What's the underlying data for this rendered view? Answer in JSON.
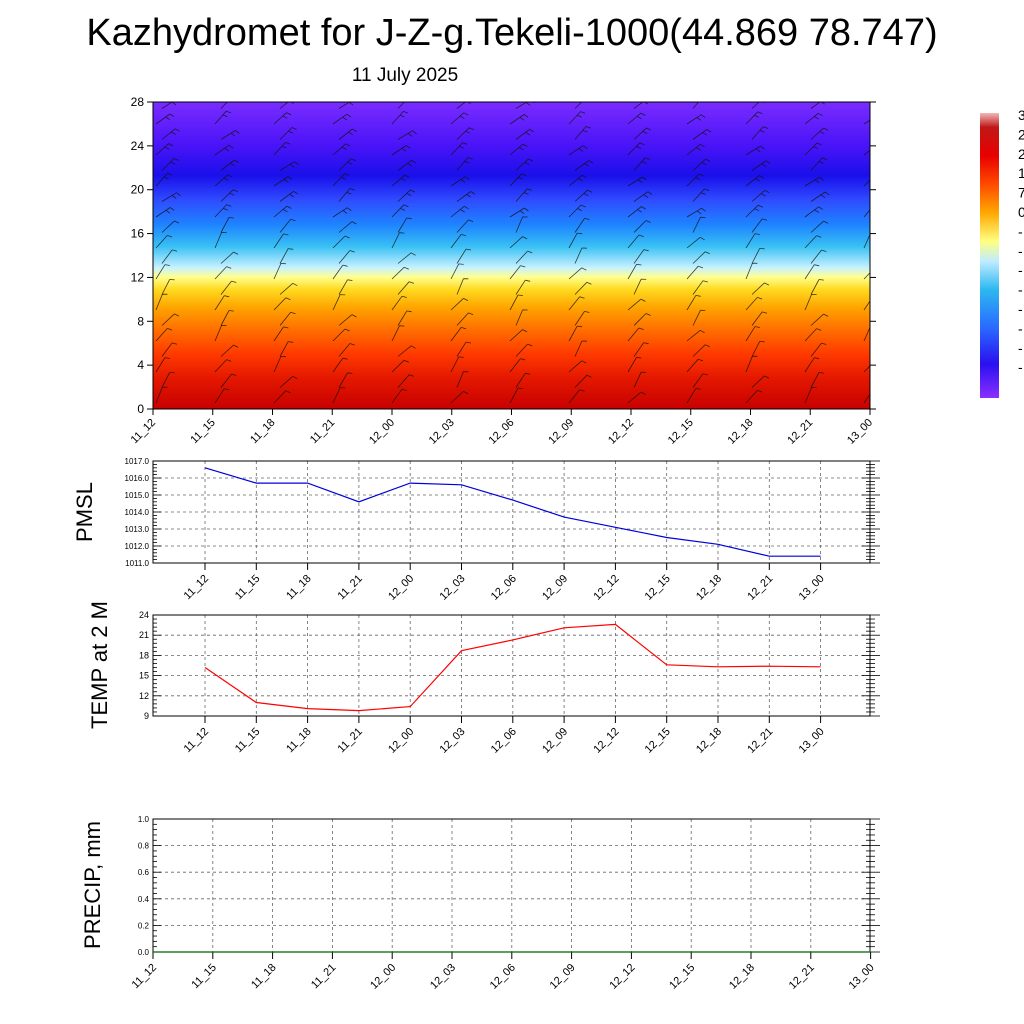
{
  "header": {
    "title": "Kazhydromet for J-Z-g.Tekeli-1000(44.869 78.747)",
    "subtitle": "11 July 2025"
  },
  "colors": {
    "pmsl_line": "#0000dd",
    "temp_line": "#ff0000",
    "precip_line": "#006400",
    "cross_section_ramp": [
      "#f2f2f2",
      "#8a1a1a",
      "#d40000",
      "#ff2a00",
      "#ff7a00",
      "#ffc000",
      "#ffff90",
      "#b8ecff",
      "#28b8f0",
      "#1a7cff",
      "#3a48ff",
      "#3000f0",
      "#7a2cff"
    ]
  },
  "chart_data": [
    {
      "type": "heatmap",
      "name": "cross-section",
      "x_tick_labels": [
        "11_12",
        "11_15",
        "11_18",
        "11_21",
        "12_00",
        "12_03",
        "12_06",
        "12_09",
        "12_12",
        "12_15",
        "12_18",
        "12_21",
        "13_00"
      ],
      "y_ticks": [
        0,
        4,
        8,
        12,
        16,
        20,
        24,
        28
      ],
      "ylim": [
        0,
        28
      ],
      "colorbar_labels": [
        "3",
        "2",
        "2",
        "1",
        "7",
        "0",
        "-",
        "-",
        "-",
        "-",
        "-",
        "-",
        "-",
        "-"
      ],
      "wind_barbs": "visible",
      "grid": false
    },
    {
      "type": "line",
      "name": "pmsl",
      "ylabel": "PMSL",
      "x": [
        "11_12",
        "11_15",
        "11_18",
        "11_21",
        "12_00",
        "12_03",
        "12_06",
        "12_09",
        "12_12",
        "12_15",
        "12_18",
        "12_21",
        "13_00"
      ],
      "y_tick_labels": [
        "1011.0",
        "1012.0",
        "1013.0",
        "1014.0",
        "1015.0",
        "1016.0",
        "1017.0"
      ],
      "ylim": [
        1011,
        1017
      ],
      "values": [
        1016.6,
        1015.7,
        1015.7,
        1014.6,
        1015.7,
        1015.6,
        1014.7,
        1013.7,
        1013.1,
        1012.5,
        1012.1,
        1011.4,
        1011.4
      ],
      "grid": true
    },
    {
      "type": "line",
      "name": "temp",
      "ylabel": "TEMP at 2 M",
      "x": [
        "11_12",
        "11_15",
        "11_18",
        "11_21",
        "12_00",
        "12_03",
        "12_06",
        "12_09",
        "12_12",
        "12_15",
        "12_18",
        "12_21",
        "13_00"
      ],
      "y_tick_labels": [
        "9",
        "12",
        "15",
        "18",
        "21",
        "24"
      ],
      "ylim": [
        9,
        24
      ],
      "values": [
        16.2,
        11.0,
        10.1,
        9.8,
        10.4,
        18.7,
        20.3,
        22.1,
        22.6,
        16.6,
        16.3,
        16.4,
        16.3
      ],
      "grid": true
    },
    {
      "type": "line",
      "name": "precip",
      "ylabel": "PRECIP, mm",
      "x": [
        "11_12",
        "11_15",
        "11_18",
        "11_21",
        "12_00",
        "12_03",
        "12_06",
        "12_09",
        "12_12",
        "12_15",
        "12_18",
        "12_21",
        "13_00"
      ],
      "y_tick_labels": [
        "0.0",
        "0.2",
        "0.4",
        "0.6",
        "0.8",
        "1.0"
      ],
      "ylim": [
        0,
        1
      ],
      "values": [
        0,
        0,
        0,
        0,
        0,
        0,
        0,
        0,
        0,
        0,
        0,
        0,
        0
      ],
      "grid": true
    }
  ]
}
